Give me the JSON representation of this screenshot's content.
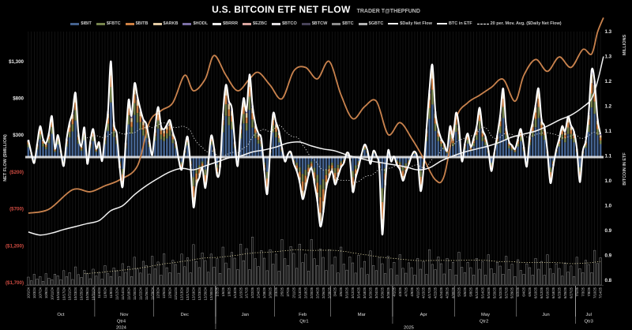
{
  "header": {
    "title": "U.S. BITCOIN ETF NET FLOW",
    "subtitle": "TRADER T@THEPFUND"
  },
  "colors": {
    "background": "#000000",
    "ibit": "#44628e",
    "fbtc": "#75834c",
    "bitb": "#cd7f42",
    "arkb": "#e2c9a2",
    "hodl": "#7b6fa6",
    "brrr": "#ececec",
    "ezbc": "#d8a49e",
    "btco": "#e0dde0",
    "btcw": "#474258",
    "btc": "#8c8c8c",
    "gbtc": "#b3b3b3",
    "net_flow_line": "#ffffff",
    "btc_in_etf_line": "#f2f2f2",
    "price_line": "#c9824d",
    "ma_line": "#e0e0e0",
    "volume_ma": "#cfc79a",
    "positive_tick": "#e8e8e8",
    "negative_tick": "#cf4b41",
    "zero_line": "rgba(240,240,240,0.85)",
    "gridline": "rgba(255,255,255,0.10)",
    "separator": "rgba(255,255,255,0.55)",
    "volume_bar_stroke": "rgba(255,255,255,0.5)",
    "volume_bar_fill": "#101010",
    "axis_line": "rgba(255,255,255,0.35)"
  },
  "legend": [
    {
      "label": "$IBIT",
      "type": "bar",
      "color": "#44628e"
    },
    {
      "label": "$FBTC",
      "type": "bar",
      "color": "#75834c"
    },
    {
      "label": "$BITB",
      "type": "bar",
      "color": "#cd7f42"
    },
    {
      "label": "$ARKB",
      "type": "bar",
      "color": "#e2c9a2"
    },
    {
      "label": "$HODL",
      "type": "bar",
      "color": "#7b6fa6"
    },
    {
      "label": "$BRRR",
      "type": "bar",
      "color": "#ececec"
    },
    {
      "label": "$EZBC",
      "type": "bar",
      "color": "#d8a49e"
    },
    {
      "label": "$BTCO",
      "type": "bar",
      "color": "#e0dde0"
    },
    {
      "label": "$BTCW",
      "type": "bar",
      "color": "#474258"
    },
    {
      "label": "$BTC",
      "type": "bar",
      "color": "#8c8c8c"
    },
    {
      "label": "$GBTC",
      "type": "bar",
      "color": "#b3b3b3"
    },
    {
      "label": "$Daily Net Flow",
      "type": "line",
      "color": "#ffffff"
    },
    {
      "label": "BTC in ETF",
      "type": "line",
      "color": "#ffffff"
    },
    {
      "label": "20 per. Mov. Avg. ($Daily Net Flow)",
      "type": "dotted",
      "color": "#ffffff"
    }
  ],
  "y_axis_left": {
    "title": "NET FLOW ($MILLION)",
    "ticks": [
      {
        "label": "$1,300",
        "value": 1300,
        "negative": false
      },
      {
        "label": "$800",
        "value": 800,
        "negative": false
      },
      {
        "label": "$300",
        "value": 300,
        "negative": false
      },
      {
        "label": "($200)",
        "value": -200,
        "negative": true
      },
      {
        "label": "($700)",
        "value": -700,
        "negative": true
      },
      {
        "label": "($1,200)",
        "value": -1200,
        "negative": true
      },
      {
        "label": "($1,700)",
        "value": -1700,
        "negative": true
      }
    ]
  },
  "y_axis_right": {
    "title": "BITCOIN IN ETF",
    "unit": "MILLIONS",
    "ticks": [
      {
        "label": "1.3",
        "value": 1.35
      },
      {
        "label": "1.3",
        "value": 1.3
      },
      {
        "label": "1.2",
        "value": 1.25
      },
      {
        "label": "1.2",
        "value": 1.2
      },
      {
        "label": "1.1",
        "value": 1.15
      },
      {
        "label": "1.1",
        "value": 1.1
      },
      {
        "label": "1.0",
        "value": 1.05
      },
      {
        "label": "1.0",
        "value": 1.0
      },
      {
        "label": "0.9",
        "value": 0.95
      },
      {
        "label": "0.9",
        "value": 0.9
      },
      {
        "label": "0.8",
        "value": 0.85
      }
    ]
  },
  "x_axis": {
    "start": "2024-10-01",
    "end": "2025-07-14",
    "holidays": [
      "2024-11-28",
      "2024-12-25",
      "2025-01-01",
      "2025-01-09",
      "2025-01-20",
      "2025-02-17",
      "2025-04-18",
      "2025-05-26",
      "2025-06-19",
      "2025-07-04"
    ],
    "label_every_n_days": 2,
    "months": [
      "Oct",
      "Nov",
      "Dec",
      "Jan",
      "Feb",
      "Mar",
      "Apr",
      "May",
      "Jun",
      "Jul"
    ],
    "quarters": [
      {
        "label": "Qtr4",
        "month_span": [
          0,
          2
        ]
      },
      {
        "label": "Qtr1",
        "month_span": [
          3,
          5
        ]
      },
      {
        "label": "Qtr2",
        "month_span": [
          6,
          8
        ]
      },
      {
        "label": "Qtr3",
        "month_span": [
          9,
          9
        ]
      }
    ],
    "years": [
      {
        "label": "2024",
        "month_span": [
          0,
          2
        ]
      },
      {
        "label": "2025",
        "month_span": [
          3,
          9
        ]
      }
    ]
  },
  "chart_data": {
    "type": "bar",
    "title": "U.S. BITCOIN ETF NET FLOW",
    "xlabel": "",
    "ylabel": "NET FLOW ($MILLION)",
    "left_axis_range": [
      -1700,
      1300
    ],
    "right_axis_range": [
      0.85,
      1.35
    ],
    "grid": "vertical-daily",
    "legend_position": "top",
    "daily_net_flow_musd": [
      235,
      60,
      -80,
      180,
      420,
      250,
      190,
      330,
      555,
      120,
      300,
      90,
      -120,
      250,
      470,
      610,
      870,
      320,
      150,
      400,
      -90,
      210,
      380,
      120,
      200,
      -55,
      310,
      620,
      1300,
      480,
      310,
      -150,
      -400,
      200,
      775,
      560,
      1000,
      820,
      650,
      510,
      450,
      240,
      30,
      390,
      680,
      420,
      380,
      440,
      500,
      330,
      210,
      -40,
      -170,
      90,
      275,
      -120,
      -680,
      -380,
      -275,
      -150,
      -420,
      -90,
      290,
      115,
      -250,
      -140,
      590,
      980,
      760,
      660,
      210,
      -120,
      440,
      800,
      630,
      1120,
      700,
      450,
      320,
      250,
      -180,
      -500,
      90,
      590,
      470,
      350,
      130,
      -60,
      40,
      70,
      -90,
      -190,
      -340,
      -570,
      -430,
      -250,
      -150,
      -360,
      -600,
      -940,
      -750,
      -420,
      -275,
      -190,
      -370,
      -260,
      -140,
      -80,
      60,
      -20,
      -470,
      -280,
      -135,
      40,
      170,
      90,
      -93,
      85,
      20,
      -150,
      -1050,
      -380,
      90,
      -60,
      10,
      -110,
      -170,
      -320,
      -210,
      -100,
      20,
      76,
      -30,
      -460,
      -170,
      380,
      910,
      1250,
      620,
      380,
      250,
      180,
      90,
      420,
      260,
      600,
      420,
      -56,
      180,
      320,
      140,
      260,
      410,
      670,
      380,
      280,
      90,
      -190,
      60,
      300,
      570,
      930,
      420,
      210,
      160,
      110,
      250,
      380,
      140,
      -130,
      280,
      480,
      710,
      930,
      510,
      410,
      80,
      -350,
      -120,
      100,
      250,
      420,
      350,
      550,
      430,
      350,
      110,
      -340,
      80,
      220,
      600,
      1180,
      1030,
      520,
      310
    ],
    "stack_fractions_positive": [
      [
        "ibit",
        0.57
      ],
      [
        "fbtc",
        0.16
      ],
      [
        "bitb",
        0.12
      ],
      [
        "arkb",
        0.1
      ],
      [
        "hodl",
        0.05
      ]
    ],
    "stack_fractions_negative": [
      [
        "ibit",
        0.4
      ],
      [
        "fbtc",
        0.18
      ],
      [
        "bitb",
        0.22
      ],
      [
        "arkb",
        0.12
      ],
      [
        "gbtc",
        0.08
      ]
    ],
    "moving_average_window": 20,
    "btc_in_etf_millions_keypoints": [
      [
        0,
        0.947
      ],
      [
        4,
        0.941
      ],
      [
        8,
        0.945
      ],
      [
        12,
        0.952
      ],
      [
        16,
        0.958
      ],
      [
        20,
        0.964
      ],
      [
        24,
        0.97
      ],
      [
        28,
        0.99
      ],
      [
        32,
        1.0
      ],
      [
        36,
        1.022
      ],
      [
        40,
        1.04
      ],
      [
        44,
        1.055
      ],
      [
        48,
        1.068
      ],
      [
        52,
        1.075
      ],
      [
        56,
        1.072
      ],
      [
        60,
        1.08
      ],
      [
        64,
        1.088
      ],
      [
        68,
        1.096
      ],
      [
        72,
        1.1
      ],
      [
        76,
        1.108
      ],
      [
        80,
        1.112
      ],
      [
        84,
        1.118
      ],
      [
        88,
        1.126
      ],
      [
        92,
        1.128
      ],
      [
        96,
        1.12
      ],
      [
        100,
        1.114
      ],
      [
        104,
        1.11
      ],
      [
        108,
        1.102
      ],
      [
        112,
        1.096
      ],
      [
        116,
        1.09
      ],
      [
        120,
        1.086
      ],
      [
        124,
        1.082
      ],
      [
        128,
        1.078
      ],
      [
        132,
        1.072
      ],
      [
        136,
        1.076
      ],
      [
        140,
        1.09
      ],
      [
        144,
        1.1
      ],
      [
        148,
        1.108
      ],
      [
        152,
        1.114
      ],
      [
        156,
        1.12
      ],
      [
        160,
        1.128
      ],
      [
        164,
        1.138
      ],
      [
        168,
        1.144
      ],
      [
        172,
        1.15
      ],
      [
        176,
        1.16
      ],
      [
        180,
        1.172
      ],
      [
        184,
        1.182
      ],
      [
        188,
        1.198
      ],
      [
        191,
        1.215
      ],
      [
        193,
        1.25
      ],
      [
        195,
        1.3
      ]
    ],
    "orange_overlay_line_keypoints": [
      [
        0,
        0.985
      ],
      [
        7,
        0.993
      ],
      [
        15,
        1.032
      ],
      [
        21,
        1.028
      ],
      [
        26,
        1.04
      ],
      [
        31,
        1.052
      ],
      [
        37,
        1.08
      ],
      [
        41,
        1.167
      ],
      [
        45,
        1.191
      ],
      [
        49,
        1.207
      ],
      [
        53,
        1.262
      ],
      [
        56,
        1.231
      ],
      [
        60,
        1.255
      ],
      [
        63,
        1.302
      ],
      [
        67,
        1.262
      ],
      [
        71,
        1.231
      ],
      [
        75,
        1.255
      ],
      [
        78,
        1.268
      ],
      [
        82,
        1.242
      ],
      [
        86,
        1.215
      ],
      [
        90,
        1.271
      ],
      [
        94,
        1.278
      ],
      [
        98,
        1.255
      ],
      [
        102,
        1.29
      ],
      [
        106,
        1.223
      ],
      [
        110,
        1.175
      ],
      [
        114,
        1.199
      ],
      [
        118,
        1.21
      ],
      [
        122,
        1.143
      ],
      [
        126,
        1.167
      ],
      [
        130,
        1.135
      ],
      [
        134,
        1.095
      ],
      [
        138,
        1.052
      ],
      [
        141,
        1.06
      ],
      [
        145,
        1.175
      ],
      [
        149,
        1.207
      ],
      [
        153,
        1.222
      ],
      [
        157,
        1.238
      ],
      [
        161,
        1.254
      ],
      [
        165,
        1.21
      ],
      [
        168,
        1.262
      ],
      [
        172,
        1.294
      ],
      [
        176,
        1.27
      ],
      [
        180,
        1.299
      ],
      [
        184,
        1.278
      ],
      [
        188,
        1.314
      ],
      [
        191,
        1.305
      ],
      [
        193,
        1.349
      ],
      [
        195,
        1.378
      ]
    ],
    "bottom_histogram_height_keypoints": [
      [
        0,
        10
      ],
      [
        6,
        9
      ],
      [
        12,
        13
      ],
      [
        18,
        15
      ],
      [
        24,
        14
      ],
      [
        30,
        18
      ],
      [
        36,
        22
      ],
      [
        42,
        26
      ],
      [
        48,
        24
      ],
      [
        54,
        30
      ],
      [
        58,
        34
      ],
      [
        62,
        28
      ],
      [
        66,
        30
      ],
      [
        70,
        34
      ],
      [
        74,
        40
      ],
      [
        78,
        36
      ],
      [
        82,
        32
      ],
      [
        86,
        36
      ],
      [
        90,
        40
      ],
      [
        94,
        34
      ],
      [
        98,
        38
      ],
      [
        102,
        32
      ],
      [
        106,
        30
      ],
      [
        110,
        28
      ],
      [
        114,
        26
      ],
      [
        118,
        28
      ],
      [
        122,
        26
      ],
      [
        126,
        24
      ],
      [
        130,
        22
      ],
      [
        134,
        26
      ],
      [
        138,
        30
      ],
      [
        142,
        24
      ],
      [
        146,
        26
      ],
      [
        150,
        22
      ],
      [
        154,
        26
      ],
      [
        158,
        22
      ],
      [
        162,
        26
      ],
      [
        166,
        20
      ],
      [
        170,
        22
      ],
      [
        174,
        26
      ],
      [
        178,
        22
      ],
      [
        182,
        20
      ],
      [
        186,
        22
      ],
      [
        190,
        26
      ],
      [
        193,
        34
      ],
      [
        194,
        30
      ]
    ],
    "bottom_histogram_pattern": [
      1,
      0.55,
      1.4,
      0.8,
      1.15,
      0.5,
      1.6,
      0.9,
      0.65,
      1.25
    ]
  }
}
